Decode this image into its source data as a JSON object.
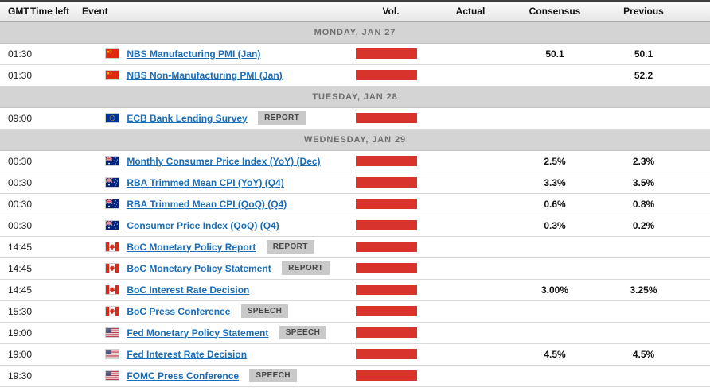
{
  "table": {
    "columns": [
      "GMT",
      "Time left",
      "Event",
      "Vol.",
      "Actual",
      "Consensus",
      "Previous"
    ]
  },
  "colors": {
    "volatility_bar": "#d9342b",
    "event_link_blue": "#1a6db8",
    "section_header_bg": "#d4d4d4",
    "badge_bg": "#c9c9c9"
  },
  "sections": [
    {
      "label": "MONDAY, JAN 27",
      "rows": [
        {
          "gmt": "01:30",
          "time_left": "",
          "flag_icon": "flag-china-icon",
          "event": "NBS Manufacturing PMI (Jan)",
          "badge": "",
          "vol_level": "high",
          "actual": "",
          "consensus": "50.1",
          "previous": "50.1"
        },
        {
          "gmt": "01:30",
          "time_left": "",
          "flag_icon": "flag-china-icon",
          "event": "NBS Non-Manufacturing PMI (Jan)",
          "badge": "",
          "vol_level": "high",
          "actual": "",
          "consensus": "",
          "previous": "52.2"
        }
      ]
    },
    {
      "label": "TUESDAY, JAN 28",
      "rows": [
        {
          "gmt": "09:00",
          "time_left": "",
          "flag_icon": "flag-european-union-icon",
          "event": "ECB Bank Lending Survey",
          "badge": "REPORT",
          "vol_level": "high",
          "actual": "",
          "consensus": "",
          "previous": ""
        }
      ]
    },
    {
      "label": "WEDNESDAY, JAN 29",
      "rows": [
        {
          "gmt": "00:30",
          "time_left": "",
          "flag_icon": "flag-australia-icon",
          "event": "Monthly Consumer Price Index (YoY) (Dec)",
          "badge": "",
          "vol_level": "high",
          "actual": "",
          "consensus": "2.5%",
          "previous": "2.3%"
        },
        {
          "gmt": "00:30",
          "time_left": "",
          "flag_icon": "flag-australia-icon",
          "event": "RBA Trimmed Mean CPI (YoY) (Q4)",
          "badge": "",
          "vol_level": "high",
          "actual": "",
          "consensus": "3.3%",
          "previous": "3.5%"
        },
        {
          "gmt": "00:30",
          "time_left": "",
          "flag_icon": "flag-australia-icon",
          "event": "RBA Trimmed Mean CPI (QoQ) (Q4)",
          "badge": "",
          "vol_level": "high",
          "actual": "",
          "consensus": "0.6%",
          "previous": "0.8%"
        },
        {
          "gmt": "00:30",
          "time_left": "",
          "flag_icon": "flag-australia-icon",
          "event": "Consumer Price Index (QoQ) (Q4)",
          "badge": "",
          "vol_level": "high",
          "actual": "",
          "consensus": "0.3%",
          "previous": "0.2%"
        },
        {
          "gmt": "14:45",
          "time_left": "",
          "flag_icon": "flag-canada-icon",
          "event": "BoC Monetary Policy Report",
          "badge": "REPORT",
          "vol_level": "high",
          "actual": "",
          "consensus": "",
          "previous": ""
        },
        {
          "gmt": "14:45",
          "time_left": "",
          "flag_icon": "flag-canada-icon",
          "event": "BoC Monetary Policy Statement",
          "badge": "REPORT",
          "vol_level": "high",
          "actual": "",
          "consensus": "",
          "previous": ""
        },
        {
          "gmt": "14:45",
          "time_left": "",
          "flag_icon": "flag-canada-icon",
          "event": "BoC Interest Rate Decision",
          "badge": "",
          "vol_level": "high",
          "actual": "",
          "consensus": "3.00%",
          "previous": "3.25%"
        },
        {
          "gmt": "15:30",
          "time_left": "",
          "flag_icon": "flag-canada-icon",
          "event": "BoC Press Conference",
          "badge": "SPEECH",
          "vol_level": "high",
          "actual": "",
          "consensus": "",
          "previous": ""
        },
        {
          "gmt": "19:00",
          "time_left": "",
          "flag_icon": "flag-united-states-icon",
          "event": "Fed Monetary Policy Statement",
          "badge": "SPEECH",
          "vol_level": "high",
          "actual": "",
          "consensus": "",
          "previous": ""
        },
        {
          "gmt": "19:00",
          "time_left": "",
          "flag_icon": "flag-united-states-icon",
          "event": "Fed Interest Rate Decision",
          "badge": "",
          "vol_level": "high",
          "actual": "",
          "consensus": "4.5%",
          "previous": "4.5%"
        },
        {
          "gmt": "19:30",
          "time_left": "",
          "flag_icon": "flag-united-states-icon",
          "event": "FOMC Press Conference",
          "badge": "SPEECH",
          "vol_level": "high",
          "actual": "",
          "consensus": "",
          "previous": ""
        }
      ]
    }
  ]
}
